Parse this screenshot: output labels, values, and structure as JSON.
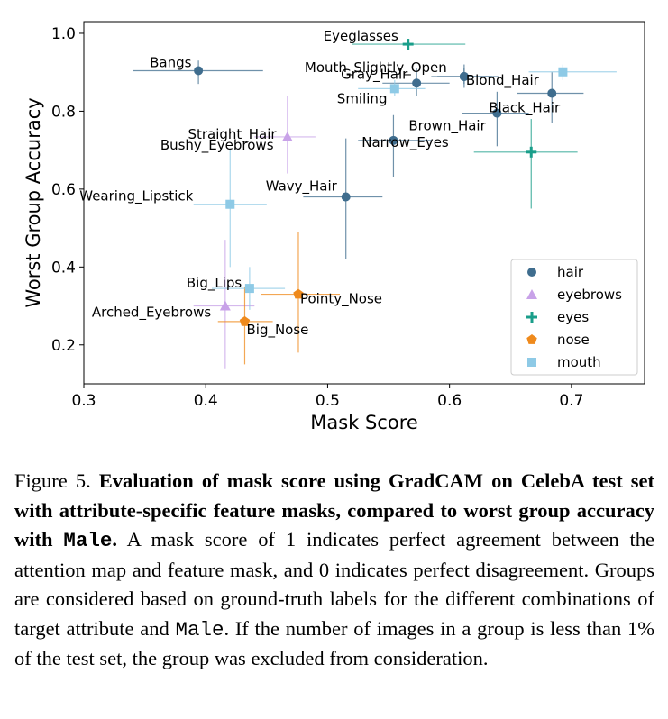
{
  "chart_data": {
    "type": "scatter",
    "xlabel": "Mask Score",
    "ylabel": "Worst Group Accuracy",
    "xlim": [
      0.3,
      0.76
    ],
    "ylim": [
      0.1,
      1.03
    ],
    "xticks": [
      "0.3",
      "0.4",
      "0.5",
      "0.6",
      "0.7"
    ],
    "yticks": [
      "0.2",
      "0.4",
      "0.6",
      "0.8",
      "1.0"
    ],
    "grid": false,
    "legend_position": "bottom-right",
    "series": [
      {
        "name": "hair",
        "marker": "circle",
        "color": "#3f6d8e",
        "points": [
          {
            "label": "Bangs",
            "x": 0.394,
            "y": 0.904,
            "xerr": [
              0.34,
              0.447
            ],
            "yerr": [
              0.87,
              0.93
            ]
          },
          {
            "label": "Gray_Hair",
            "x": 0.573,
            "y": 0.872,
            "xerr": [
              0.545,
              0.6
            ],
            "yerr": [
              0.84,
              0.91
            ]
          },
          {
            "label": "Mouth_Slightly_Open",
            "x": 0.612,
            "y": 0.889,
            "xerr": [
              0.585,
              0.64
            ],
            "yerr": [
              0.87,
              0.91
            ]
          },
          {
            "label": "Blond_Hair",
            "x": 0.612,
            "y": 0.889,
            "xerr": [
              0.59,
              0.635
            ],
            "yerr": [
              0.86,
              0.92
            ]
          },
          {
            "label": "Black_Hair",
            "x": 0.684,
            "y": 0.846,
            "xerr": [
              0.655,
              0.71
            ],
            "yerr": [
              0.77,
              0.9
            ]
          },
          {
            "label": "Brown_Hair",
            "x": 0.639,
            "y": 0.795,
            "xerr": [
              0.61,
              0.665
            ],
            "yerr": [
              0.71,
              0.85
            ]
          },
          {
            "label": "Straight_Hair",
            "x": 0.554,
            "y": 0.725,
            "xerr": [
              0.525,
              0.585
            ],
            "yerr": [
              0.63,
              0.79
            ]
          },
          {
            "label": "Wavy_Hair",
            "x": 0.515,
            "y": 0.58,
            "xerr": [
              0.48,
              0.545
            ],
            "yerr": [
              0.42,
              0.73
            ]
          }
        ]
      },
      {
        "name": "eyebrows",
        "marker": "triangle",
        "color": "#c8a2e8",
        "points": [
          {
            "label": "Bushy_Eyebrows",
            "x": 0.467,
            "y": 0.734,
            "xerr": [
              0.44,
              0.49
            ],
            "yerr": [
              0.64,
              0.84
            ]
          },
          {
            "label": "Arched_Eyebrows",
            "x": 0.416,
            "y": 0.3,
            "xerr": [
              0.39,
              0.44
            ],
            "yerr": [
              0.14,
              0.47
            ]
          }
        ]
      },
      {
        "name": "eyes",
        "marker": "plus",
        "color": "#1a9e8a",
        "points": [
          {
            "label": "Eyeglasses",
            "x": 0.566,
            "y": 0.972,
            "xerr": [
              0.52,
              0.613
            ],
            "yerr": [
              0.96,
              0.98
            ]
          },
          {
            "label": "Narrow_Eyes",
            "x": 0.667,
            "y": 0.695,
            "xerr": [
              0.62,
              0.705
            ],
            "yerr": [
              0.55,
              0.78
            ]
          }
        ]
      },
      {
        "name": "nose",
        "marker": "pentagon",
        "color": "#ef8a1c",
        "points": [
          {
            "label": "Pointy_Nose",
            "x": 0.476,
            "y": 0.33,
            "xerr": [
              0.445,
              0.51
            ],
            "yerr": [
              0.18,
              0.49
            ]
          },
          {
            "label": "Big_Nose",
            "x": 0.432,
            "y": 0.26,
            "xerr": [
              0.41,
              0.455
            ],
            "yerr": [
              0.15,
              0.35
            ]
          }
        ]
      },
      {
        "name": "mouth",
        "marker": "square",
        "color": "#8ecae6",
        "points": [
          {
            "label": "Smiling",
            "x": 0.555,
            "y": 0.858,
            "xerr": [
              0.525,
              0.58
            ],
            "yerr": [
              0.84,
              0.88
            ]
          },
          {
            "label": "Mouth_Slightly_Open_mouth",
            "x": 0.693,
            "y": 0.901,
            "xerr": [
              0.665,
              0.737
            ],
            "yerr": [
              0.88,
              0.92
            ]
          },
          {
            "label": "Wearing_Lipstick",
            "x": 0.42,
            "y": 0.561,
            "xerr": [
              0.39,
              0.45
            ],
            "yerr": [
              0.4,
              0.7
            ]
          },
          {
            "label": "Big_Lips",
            "x": 0.436,
            "y": 0.345,
            "xerr": [
              0.405,
              0.465
            ],
            "yerr": [
              0.29,
              0.4
            ]
          }
        ]
      }
    ],
    "labels": [
      {
        "text": "Eyeglasses",
        "series": 2,
        "point": 0
      },
      {
        "text": "Bangs",
        "series": 0,
        "point": 0
      },
      {
        "text": "Mouth_Slightly_Open",
        "series": 0,
        "point": 2
      },
      {
        "text": "Gray_Hair",
        "series": 0,
        "point": 1
      },
      {
        "text": "Blond_Hair",
        "series": 0,
        "point": 3
      },
      {
        "text": "Smiling",
        "series": 4,
        "point": 0
      },
      {
        "text": "Brown_Hair",
        "series": 0,
        "point": 5
      },
      {
        "text": "Black_Hair",
        "series": 0,
        "point": 4
      },
      {
        "text": "Straight_Hair",
        "series": 0,
        "point": 6
      },
      {
        "text": "Bushy_Eyebrows",
        "series": 1,
        "point": 0
      },
      {
        "text": "Narrow_Eyes",
        "series": 2,
        "point": 1
      },
      {
        "text": "Wearing_Lipstick",
        "series": 4,
        "point": 2
      },
      {
        "text": "Wavy_Hair",
        "series": 0,
        "point": 7
      },
      {
        "text": "Big_Lips",
        "series": 4,
        "point": 3
      },
      {
        "text": "Pointy_Nose",
        "series": 3,
        "point": 0
      },
      {
        "text": "Arched_Eyebrows",
        "series": 1,
        "point": 1
      },
      {
        "text": "Big_Nose",
        "series": 3,
        "point": 1
      }
    ]
  },
  "caption": {
    "figure_label": "Figure 5.",
    "bold_part1": "Evaluation of mask score using GradCAM on CelebA test set with attribute-specific feature masks, compared to worst group accuracy with",
    "bold_mono": "Male",
    "bold_end": ".",
    "text_part1": "A mask score of 1 indicates perfect agreement between the attention map and feature mask, and 0 indicates perfect disagreement. Groups are considered based on ground-truth labels for the different combinations of target attribute and",
    "mono_word": "Male",
    "text_part2": ". If the number of images in a group is less than 1% of the test set, the group was excluded from consideration."
  }
}
